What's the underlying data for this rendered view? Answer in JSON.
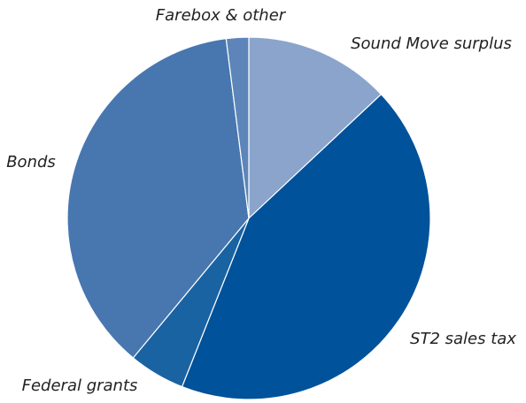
{
  "chart_data": {
    "type": "pie",
    "categories": [
      "Sound Move surplus",
      "ST2 sales tax",
      "Federal grants",
      "Bonds",
      "Farebox & other"
    ],
    "values": [
      13,
      43,
      5,
      37,
      2
    ],
    "colors": [
      "#8aa4cc",
      "#00529a",
      "#1a63a3",
      "#4877b0",
      "#5d85ba"
    ]
  }
}
